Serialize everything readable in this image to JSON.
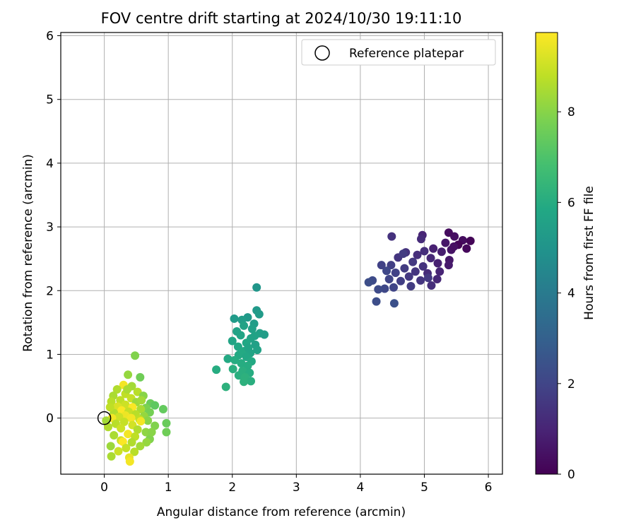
{
  "chart_data": {
    "type": "scatter",
    "title": "FOV centre drift starting at 2024/10/30 19:11:10",
    "xlabel": "Angular distance from reference (arcmin)",
    "ylabel": "Rotation from reference (arcmin)",
    "xlim": [
      -0.68,
      6.22
    ],
    "ylim": [
      -0.88,
      6.05
    ],
    "xticks": [
      0,
      1,
      2,
      3,
      4,
      5,
      6
    ],
    "yticks": [
      0,
      1,
      2,
      3,
      4,
      5,
      6
    ],
    "grid": true,
    "legend": {
      "location": "top-right",
      "entries": [
        "Reference platepar"
      ]
    },
    "colorbar": {
      "label": "Hours from first FF file",
      "range": [
        0,
        9.75
      ],
      "ticks": [
        0,
        2,
        4,
        6,
        8
      ],
      "colormap": "viridis"
    },
    "reference_point": {
      "x": 0.0,
      "y": 0.0,
      "label": "Reference platepar"
    },
    "points": [
      {
        "x": 5.72,
        "y": 2.78,
        "c": 0.1
      },
      {
        "x": 5.66,
        "y": 2.66,
        "c": 0.2
      },
      {
        "x": 5.6,
        "y": 2.79,
        "c": 0.3
      },
      {
        "x": 5.53,
        "y": 2.72,
        "c": 0.1
      },
      {
        "x": 5.47,
        "y": 2.85,
        "c": 0.4
      },
      {
        "x": 5.42,
        "y": 2.64,
        "c": 0.5
      },
      {
        "x": 5.38,
        "y": 2.91,
        "c": 0.3
      },
      {
        "x": 5.39,
        "y": 2.48,
        "c": 0.6
      },
      {
        "x": 5.38,
        "y": 2.4,
        "c": 0.7
      },
      {
        "x": 5.33,
        "y": 2.75,
        "c": 0.6
      },
      {
        "x": 5.27,
        "y": 2.61,
        "c": 0.8
      },
      {
        "x": 5.21,
        "y": 2.43,
        "c": 0.9
      },
      {
        "x": 5.24,
        "y": 2.3,
        "c": 1.0
      },
      {
        "x": 5.2,
        "y": 2.18,
        "c": 1.1
      },
      {
        "x": 5.14,
        "y": 2.66,
        "c": 0.9
      },
      {
        "x": 5.1,
        "y": 2.51,
        "c": 1.1
      },
      {
        "x": 5.11,
        "y": 2.08,
        "c": 1.3
      },
      {
        "x": 5.05,
        "y": 2.27,
        "c": 1.2
      },
      {
        "x": 4.97,
        "y": 2.87,
        "c": 1.0
      },
      {
        "x": 4.95,
        "y": 2.81,
        "c": 1.2
      },
      {
        "x": 4.98,
        "y": 2.38,
        "c": 1.4
      },
      {
        "x": 4.94,
        "y": 2.16,
        "c": 1.5
      },
      {
        "x": 4.89,
        "y": 2.56,
        "c": 1.3
      },
      {
        "x": 4.86,
        "y": 2.3,
        "c": 1.5
      },
      {
        "x": 4.82,
        "y": 2.45,
        "c": 1.6
      },
      {
        "x": 4.79,
        "y": 2.07,
        "c": 1.7
      },
      {
        "x": 4.76,
        "y": 2.22,
        "c": 1.6
      },
      {
        "x": 4.71,
        "y": 2.6,
        "c": 1.4
      },
      {
        "x": 4.69,
        "y": 2.35,
        "c": 1.7
      },
      {
        "x": 4.63,
        "y": 2.15,
        "c": 1.8
      },
      {
        "x": 4.59,
        "y": 2.52,
        "c": 1.5
      },
      {
        "x": 4.55,
        "y": 2.28,
        "c": 1.9
      },
      {
        "x": 4.52,
        "y": 2.05,
        "c": 2.0
      },
      {
        "x": 4.49,
        "y": 2.85,
        "c": 1.4
      },
      {
        "x": 4.48,
        "y": 2.4,
        "c": 1.8
      },
      {
        "x": 4.45,
        "y": 2.18,
        "c": 2.0
      },
      {
        "x": 4.41,
        "y": 2.31,
        "c": 2.1
      },
      {
        "x": 4.38,
        "y": 2.03,
        "c": 2.1
      },
      {
        "x": 4.33,
        "y": 2.4,
        "c": 1.9
      },
      {
        "x": 4.28,
        "y": 2.02,
        "c": 2.2
      },
      {
        "x": 4.19,
        "y": 2.16,
        "c": 2.2
      },
      {
        "x": 4.13,
        "y": 2.13,
        "c": 2.3
      },
      {
        "x": 4.25,
        "y": 1.83,
        "c": 2.3
      },
      {
        "x": 4.53,
        "y": 1.8,
        "c": 2.4
      },
      {
        "x": 4.67,
        "y": 2.58,
        "c": 1.7
      },
      {
        "x": 5.0,
        "y": 2.62,
        "c": 1.3
      },
      {
        "x": 5.46,
        "y": 2.69,
        "c": 0.4
      },
      {
        "x": 5.06,
        "y": 2.2,
        "c": 1.6
      },
      {
        "x": 2.38,
        "y": 2.05,
        "c": 5.1
      },
      {
        "x": 2.38,
        "y": 1.69,
        "c": 5.2
      },
      {
        "x": 2.42,
        "y": 1.63,
        "c": 5.3
      },
      {
        "x": 2.24,
        "y": 1.58,
        "c": 5.2
      },
      {
        "x": 2.15,
        "y": 1.54,
        "c": 5.4
      },
      {
        "x": 2.03,
        "y": 1.56,
        "c": 5.3
      },
      {
        "x": 2.34,
        "y": 1.48,
        "c": 5.4
      },
      {
        "x": 2.18,
        "y": 1.45,
        "c": 5.6
      },
      {
        "x": 2.31,
        "y": 1.4,
        "c": 5.5
      },
      {
        "x": 2.43,
        "y": 1.33,
        "c": 5.5
      },
      {
        "x": 2.5,
        "y": 1.31,
        "c": 5.4
      },
      {
        "x": 2.35,
        "y": 1.29,
        "c": 5.6
      },
      {
        "x": 2.13,
        "y": 1.3,
        "c": 5.7
      },
      {
        "x": 2.29,
        "y": 1.25,
        "c": 5.6
      },
      {
        "x": 2.0,
        "y": 1.21,
        "c": 5.7
      },
      {
        "x": 2.22,
        "y": 1.18,
        "c": 5.8
      },
      {
        "x": 2.36,
        "y": 1.15,
        "c": 5.5
      },
      {
        "x": 2.09,
        "y": 1.12,
        "c": 5.8
      },
      {
        "x": 2.39,
        "y": 1.07,
        "c": 5.6
      },
      {
        "x": 2.18,
        "y": 1.05,
        "c": 5.9
      },
      {
        "x": 2.28,
        "y": 1.02,
        "c": 5.7
      },
      {
        "x": 2.1,
        "y": 0.99,
        "c": 5.9
      },
      {
        "x": 2.22,
        "y": 0.96,
        "c": 5.8
      },
      {
        "x": 1.93,
        "y": 0.93,
        "c": 5.9
      },
      {
        "x": 2.04,
        "y": 0.91,
        "c": 6.0
      },
      {
        "x": 2.3,
        "y": 0.89,
        "c": 5.9
      },
      {
        "x": 2.14,
        "y": 0.86,
        "c": 6.0
      },
      {
        "x": 2.24,
        "y": 0.82,
        "c": 6.0
      },
      {
        "x": 2.01,
        "y": 0.77,
        "c": 6.1
      },
      {
        "x": 1.75,
        "y": 0.76,
        "c": 6.0
      },
      {
        "x": 2.16,
        "y": 0.74,
        "c": 6.1
      },
      {
        "x": 2.27,
        "y": 0.71,
        "c": 6.0
      },
      {
        "x": 2.1,
        "y": 0.67,
        "c": 6.1
      },
      {
        "x": 2.2,
        "y": 0.64,
        "c": 6.2
      },
      {
        "x": 2.29,
        "y": 0.58,
        "c": 6.1
      },
      {
        "x": 2.18,
        "y": 0.57,
        "c": 6.2
      },
      {
        "x": 1.9,
        "y": 0.49,
        "c": 6.2
      },
      {
        "x": 2.07,
        "y": 1.36,
        "c": 5.6
      },
      {
        "x": 2.25,
        "y": 1.1,
        "c": 5.7
      },
      {
        "x": 0.48,
        "y": 0.98,
        "c": 7.9
      },
      {
        "x": 0.37,
        "y": 0.68,
        "c": 8.2
      },
      {
        "x": 0.56,
        "y": 0.64,
        "c": 7.6
      },
      {
        "x": 0.3,
        "y": 0.52,
        "c": 9.6
      },
      {
        "x": 0.43,
        "y": 0.5,
        "c": 8.4
      },
      {
        "x": 0.2,
        "y": 0.45,
        "c": 8.6
      },
      {
        "x": 0.52,
        "y": 0.41,
        "c": 8.7
      },
      {
        "x": 0.33,
        "y": 0.38,
        "c": 8.8
      },
      {
        "x": 0.14,
        "y": 0.35,
        "c": 8.5
      },
      {
        "x": 0.61,
        "y": 0.35,
        "c": 8.0
      },
      {
        "x": 0.42,
        "y": 0.31,
        "c": 8.9
      },
      {
        "x": 0.25,
        "y": 0.28,
        "c": 8.8
      },
      {
        "x": 0.11,
        "y": 0.26,
        "c": 8.7
      },
      {
        "x": 0.5,
        "y": 0.25,
        "c": 8.3
      },
      {
        "x": 0.72,
        "y": 0.23,
        "c": 7.5
      },
      {
        "x": 0.33,
        "y": 0.21,
        "c": 9.0
      },
      {
        "x": 0.79,
        "y": 0.2,
        "c": 7.3
      },
      {
        "x": 0.21,
        "y": 0.18,
        "c": 9.2
      },
      {
        "x": 0.44,
        "y": 0.17,
        "c": 9.7
      },
      {
        "x": 0.65,
        "y": 0.16,
        "c": 7.8
      },
      {
        "x": 0.57,
        "y": 0.14,
        "c": 8.5
      },
      {
        "x": 0.92,
        "y": 0.14,
        "c": 7.4
      },
      {
        "x": 0.27,
        "y": 0.12,
        "c": 9.7
      },
      {
        "x": 0.38,
        "y": 0.1,
        "c": 8.9
      },
      {
        "x": 0.71,
        "y": 0.09,
        "c": 7.7
      },
      {
        "x": 0.15,
        "y": 0.08,
        "c": 8.6
      },
      {
        "x": 0.49,
        "y": 0.06,
        "c": 8.7
      },
      {
        "x": 0.33,
        "y": 0.04,
        "c": 9.5
      },
      {
        "x": 0.62,
        "y": 0.03,
        "c": 8.2
      },
      {
        "x": 0.23,
        "y": 0.02,
        "c": 9.0
      },
      {
        "x": 0.12,
        "y": 0.0,
        "c": 9.6
      },
      {
        "x": 0.42,
        "y": 0.0,
        "c": 9.6
      },
      {
        "x": 0.55,
        "y": -0.02,
        "c": 8.8
      },
      {
        "x": 0.03,
        "y": -0.04,
        "c": 8.4
      },
      {
        "x": 0.68,
        "y": -0.04,
        "c": 8.0
      },
      {
        "x": 0.57,
        "y": -0.05,
        "c": 9.6
      },
      {
        "x": 0.31,
        "y": -0.06,
        "c": 8.9
      },
      {
        "x": 0.97,
        "y": -0.08,
        "c": 7.5
      },
      {
        "x": 0.18,
        "y": -0.09,
        "c": 8.7
      },
      {
        "x": 0.44,
        "y": -0.11,
        "c": 9.1
      },
      {
        "x": 0.79,
        "y": -0.12,
        "c": 7.9
      },
      {
        "x": 0.06,
        "y": -0.14,
        "c": 8.6
      },
      {
        "x": 0.26,
        "y": -0.16,
        "c": 9.0
      },
      {
        "x": 0.52,
        "y": -0.18,
        "c": 8.6
      },
      {
        "x": 0.97,
        "y": -0.22,
        "c": 7.6
      },
      {
        "x": 0.65,
        "y": -0.22,
        "c": 8.1
      },
      {
        "x": 0.37,
        "y": -0.25,
        "c": 9.6
      },
      {
        "x": 0.15,
        "y": -0.27,
        "c": 8.5
      },
      {
        "x": 0.48,
        "y": -0.29,
        "c": 8.8
      },
      {
        "x": 0.71,
        "y": -0.33,
        "c": 7.9
      },
      {
        "x": 0.26,
        "y": -0.35,
        "c": 9.0
      },
      {
        "x": 0.29,
        "y": -0.37,
        "c": 9.7
      },
      {
        "x": 0.43,
        "y": -0.38,
        "c": 8.6
      },
      {
        "x": 0.66,
        "y": -0.38,
        "c": 8.2
      },
      {
        "x": 0.56,
        "y": -0.44,
        "c": 8.4
      },
      {
        "x": 0.1,
        "y": -0.44,
        "c": 8.3
      },
      {
        "x": 0.34,
        "y": -0.47,
        "c": 8.9
      },
      {
        "x": 0.22,
        "y": -0.52,
        "c": 9.0
      },
      {
        "x": 0.47,
        "y": -0.53,
        "c": 8.7
      },
      {
        "x": 0.11,
        "y": -0.6,
        "c": 8.5
      },
      {
        "x": 0.39,
        "y": -0.62,
        "c": 9.4
      },
      {
        "x": 0.4,
        "y": -0.68,
        "c": 9.6
      },
      {
        "x": 0.36,
        "y": 0.45,
        "c": 8.5
      },
      {
        "x": 0.58,
        "y": 0.28,
        "c": 8.4
      },
      {
        "x": 0.09,
        "y": 0.17,
        "c": 8.8
      },
      {
        "x": 0.74,
        "y": -0.22,
        "c": 8.0
      }
    ]
  }
}
